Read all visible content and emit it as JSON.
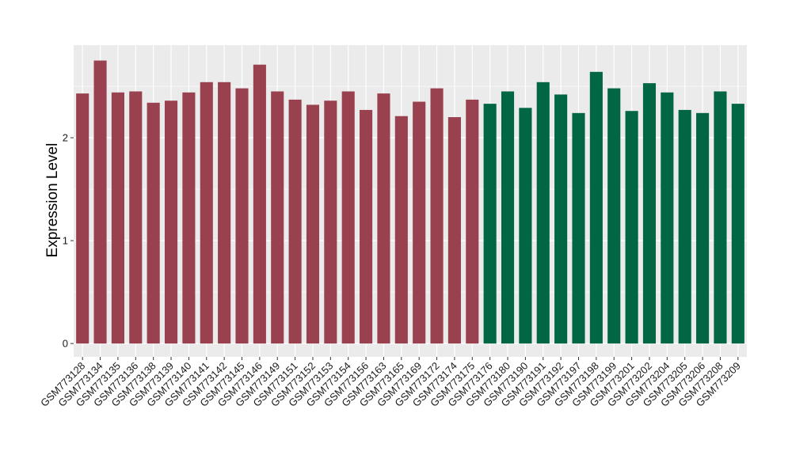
{
  "chart_data": {
    "type": "bar",
    "ylabel": "Expression Level",
    "xlabel": "",
    "ylim": [
      -0.13,
      2.9
    ],
    "yticks": [
      0,
      1,
      2
    ],
    "grid": true,
    "panel_color": "#ebebeb",
    "grid_color": "#ffffff",
    "categories": [
      "GSM773128",
      "GSM773134",
      "GSM773135",
      "GSM773136",
      "GSM773138",
      "GSM773139",
      "GSM773140",
      "GSM773141",
      "GSM773142",
      "GSM773145",
      "GSM773146",
      "GSM773149",
      "GSM773151",
      "GSM773152",
      "GSM773153",
      "GSM773154",
      "GSM773156",
      "GSM773163",
      "GSM773165",
      "GSM773169",
      "GSM773172",
      "GSM773174",
      "GSM773175",
      "GSM773176",
      "GSM773180",
      "GSM773190",
      "GSM773191",
      "GSM773192",
      "GSM773197",
      "GSM773198",
      "GSM773199",
      "GSM773201",
      "GSM773202",
      "GSM773204",
      "GSM773205",
      "GSM773206",
      "GSM773208",
      "GSM773209"
    ],
    "values": [
      2.43,
      2.75,
      2.44,
      2.45,
      2.34,
      2.36,
      2.44,
      2.54,
      2.54,
      2.48,
      2.71,
      2.45,
      2.37,
      2.32,
      2.36,
      2.45,
      2.27,
      2.43,
      2.21,
      2.35,
      2.48,
      2.2,
      2.37,
      2.33,
      2.45,
      2.29,
      2.54,
      2.42,
      2.24,
      2.64,
      2.48,
      2.26,
      2.53,
      2.44,
      2.27,
      2.24,
      2.45,
      2.33
    ],
    "bar_colors": [
      "#99414f",
      "#99414f",
      "#99414f",
      "#99414f",
      "#99414f",
      "#99414f",
      "#99414f",
      "#99414f",
      "#99414f",
      "#99414f",
      "#99414f",
      "#99414f",
      "#99414f",
      "#99414f",
      "#99414f",
      "#99414f",
      "#99414f",
      "#99414f",
      "#99414f",
      "#99414f",
      "#99414f",
      "#99414f",
      "#99414f",
      "#006644",
      "#006644",
      "#006644",
      "#006644",
      "#006644",
      "#006644",
      "#006644",
      "#006644",
      "#006644",
      "#006644",
      "#006644",
      "#006644",
      "#006644",
      "#006644",
      "#006644"
    ]
  }
}
